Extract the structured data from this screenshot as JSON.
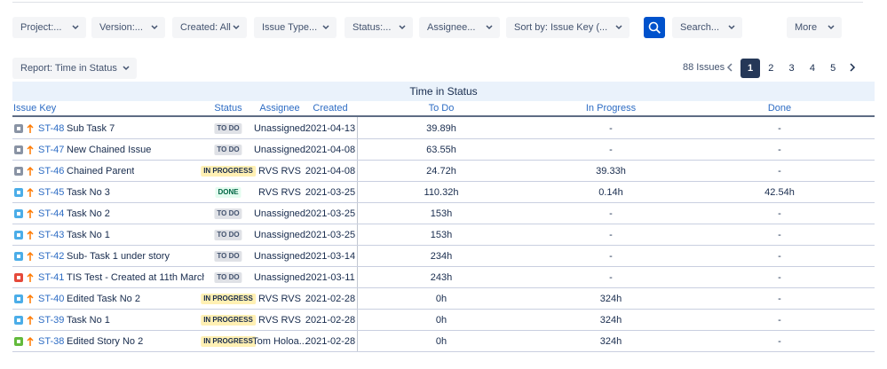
{
  "filters": [
    "Project:...",
    "Version:...",
    "Created: All",
    "Issue Type...",
    "Status:...",
    "Assignee...",
    "Sort by: Issue Key (...",
    "Search...",
    "More"
  ],
  "report": "Report: Time in Status",
  "pagination": {
    "count": "88 Issues",
    "pages": [
      "1",
      "2",
      "3",
      "4",
      "5"
    ]
  },
  "table": {
    "title": "Time in Status",
    "columns": [
      "Issue Key",
      "Status",
      "Assignee",
      "Created",
      "To Do",
      "In Progress",
      "Done"
    ],
    "rows": [
      {
        "icon": "#8993a4",
        "key": "ST-48",
        "summary": "Sub Task 7",
        "status": "TO DO",
        "status_style": [
          "#dfe1e6",
          "#42526e"
        ],
        "assignee": "Unassigned",
        "created": "2021-04-13",
        "todo": "39.89h",
        "in_progress": "-",
        "done": "-"
      },
      {
        "icon": "#8993a4",
        "key": "ST-47",
        "summary": "New Chained Issue",
        "status": "TO DO",
        "status_style": [
          "#dfe1e6",
          "#42526e"
        ],
        "assignee": "Unassigned",
        "created": "2021-04-08",
        "todo": "63.55h",
        "in_progress": "-",
        "done": "-"
      },
      {
        "icon": "#8993a4",
        "key": "ST-46",
        "summary": "Chained Parent",
        "status": "IN PROGRESS",
        "status_style": [
          "#fff0b3",
          "#172b4d"
        ],
        "assignee": "RVS RVS",
        "created": "2021-04-08",
        "todo": "24.72h",
        "in_progress": "39.33h",
        "done": "-"
      },
      {
        "icon": "#4bade8",
        "key": "ST-45",
        "summary": "Task No 3",
        "status": "DONE",
        "status_style": [
          "#e3fcef",
          "#006644"
        ],
        "assignee": "RVS RVS",
        "created": "2021-03-25",
        "todo": "110.32h",
        "in_progress": "0.14h",
        "done": "42.54h"
      },
      {
        "icon": "#4bade8",
        "key": "ST-44",
        "summary": "Task No 2",
        "status": "TO DO",
        "status_style": [
          "#dfe1e6",
          "#42526e"
        ],
        "assignee": "Unassigned",
        "created": "2021-03-25",
        "todo": "153h",
        "in_progress": "-",
        "done": "-"
      },
      {
        "icon": "#4bade8",
        "key": "ST-43",
        "summary": "Task No 1",
        "status": "TO DO",
        "status_style": [
          "#dfe1e6",
          "#42526e"
        ],
        "assignee": "Unassigned",
        "created": "2021-03-25",
        "todo": "153h",
        "in_progress": "-",
        "done": "-"
      },
      {
        "icon": "#4bade8",
        "key": "ST-42",
        "summary": "Sub- Task 1 under story",
        "status": "TO DO",
        "status_style": [
          "#dfe1e6",
          "#42526e"
        ],
        "assignee": "Unassigned",
        "created": "2021-03-14",
        "todo": "234h",
        "in_progress": "-",
        "done": "-"
      },
      {
        "icon": "#e5493a",
        "key": "ST-41",
        "summary": "TIS Test - Created at 11th March...",
        "status": "TO DO",
        "status_style": [
          "#dfe1e6",
          "#42526e"
        ],
        "assignee": "Unassigned",
        "created": "2021-03-11",
        "todo": "243h",
        "in_progress": "-",
        "done": "-"
      },
      {
        "icon": "#4bade8",
        "key": "ST-40",
        "summary": "Edited Task No 2",
        "status": "IN PROGRESS",
        "status_style": [
          "#fff0b3",
          "#172b4d"
        ],
        "assignee": "RVS RVS",
        "created": "2021-02-28",
        "todo": "0h",
        "in_progress": "324h",
        "done": "-"
      },
      {
        "icon": "#4bade8",
        "key": "ST-39",
        "summary": "Task No 1",
        "status": "IN PROGRESS",
        "status_style": [
          "#fff0b3",
          "#172b4d"
        ],
        "assignee": "RVS RVS",
        "created": "2021-02-28",
        "todo": "0h",
        "in_progress": "324h",
        "done": "-"
      },
      {
        "icon": "#63ba3c",
        "key": "ST-38",
        "summary": "Edited Story No 2",
        "status": "IN PROGRESS",
        "status_style": [
          "#fff0b3",
          "#172b4d"
        ],
        "assignee": "Tom Holoa...",
        "created": "2021-02-28",
        "todo": "0h",
        "in_progress": "324h",
        "done": "-"
      }
    ]
  }
}
